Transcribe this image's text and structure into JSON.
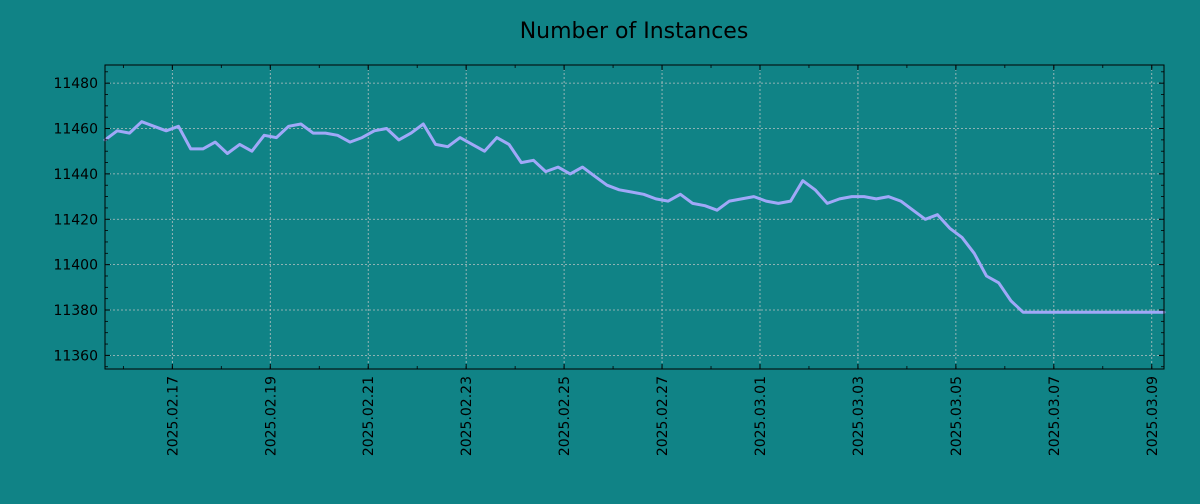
{
  "chart_data": {
    "type": "line",
    "title": "Number of Instances",
    "xlabel": "",
    "ylabel": "",
    "grid": true,
    "legend": "none",
    "colors": {
      "background": "#108386",
      "line": "#a0a8f8",
      "grid": "#b8c2c2",
      "axis": "#000000"
    },
    "xlim": [
      "2025-02-15T15:00",
      "2025-03-09T06:00"
    ],
    "ylim": [
      11354,
      11488
    ],
    "x_ticks": [
      "2025-02-17",
      "2025-02-19",
      "2025-02-21",
      "2025-02-23",
      "2025-02-25",
      "2025-02-27",
      "2025-03-01",
      "2025-03-03",
      "2025-03-05",
      "2025-03-07",
      "2025-03-09"
    ],
    "x_tick_labels": [
      "2025.02.17",
      "2025.02.19",
      "2025.02.21",
      "2025.02.23",
      "2025.02.25",
      "2025.02.27",
      "2025.03.01",
      "2025.03.03",
      "2025.03.05",
      "2025.03.07",
      "2025.03.09"
    ],
    "y_ticks": [
      11360,
      11380,
      11400,
      11420,
      11440,
      11460,
      11480
    ],
    "y_tick_labels": [
      "11360",
      "11380",
      "11400",
      "11420",
      "11440",
      "11460",
      "11480"
    ],
    "series": [
      {
        "x": [
          "2025-02-15T15:00",
          "2025-02-15T21:00",
          "2025-02-16T03:00",
          "2025-02-16T09:00",
          "2025-02-16T15:00",
          "2025-02-16T21:00",
          "2025-02-17T03:00",
          "2025-02-17T09:00",
          "2025-02-17T15:00",
          "2025-02-17T21:00",
          "2025-02-18T03:00",
          "2025-02-18T09:00",
          "2025-02-18T15:00",
          "2025-02-18T21:00",
          "2025-02-19T03:00",
          "2025-02-19T09:00",
          "2025-02-19T15:00",
          "2025-02-19T21:00",
          "2025-02-20T03:00",
          "2025-02-20T09:00",
          "2025-02-20T15:00",
          "2025-02-20T21:00",
          "2025-02-21T03:00",
          "2025-02-21T09:00",
          "2025-02-21T15:00",
          "2025-02-21T21:00",
          "2025-02-22T03:00",
          "2025-02-22T09:00",
          "2025-02-22T15:00",
          "2025-02-22T21:00",
          "2025-02-23T03:00",
          "2025-02-23T09:00",
          "2025-02-23T15:00",
          "2025-02-23T21:00",
          "2025-02-24T03:00",
          "2025-02-24T09:00",
          "2025-02-24T15:00",
          "2025-02-24T21:00",
          "2025-02-25T03:00",
          "2025-02-25T09:00",
          "2025-02-25T15:00",
          "2025-02-25T21:00",
          "2025-02-26T03:00",
          "2025-02-26T09:00",
          "2025-02-26T15:00",
          "2025-02-26T21:00",
          "2025-02-27T03:00",
          "2025-02-27T09:00",
          "2025-02-27T15:00",
          "2025-02-27T21:00",
          "2025-02-28T03:00",
          "2025-02-28T09:00",
          "2025-02-28T15:00",
          "2025-02-28T21:00",
          "2025-03-01T03:00",
          "2025-03-01T09:00",
          "2025-03-01T15:00",
          "2025-03-01T21:00",
          "2025-03-02T03:00",
          "2025-03-02T09:00",
          "2025-03-02T15:00",
          "2025-03-02T21:00",
          "2025-03-03T03:00",
          "2025-03-03T09:00",
          "2025-03-03T15:00",
          "2025-03-03T21:00",
          "2025-03-04T03:00",
          "2025-03-04T09:00",
          "2025-03-04T15:00",
          "2025-03-04T21:00",
          "2025-03-05T03:00",
          "2025-03-05T09:00",
          "2025-03-05T15:00",
          "2025-03-05T21:00",
          "2025-03-06T03:00",
          "2025-03-06T09:00",
          "2025-03-06T15:00",
          "2025-03-06T21:00",
          "2025-03-07T03:00",
          "2025-03-07T09:00",
          "2025-03-07T15:00",
          "2025-03-07T21:00",
          "2025-03-08T03:00",
          "2025-03-08T09:00",
          "2025-03-08T15:00",
          "2025-03-08T21:00",
          "2025-03-09T03:00",
          "2025-03-09T06:00"
        ],
        "y": [
          11455,
          11459,
          11458,
          11463,
          11461,
          11459,
          11461,
          11451,
          11451,
          11454,
          11449,
          11453,
          11450,
          11457,
          11456,
          11461,
          11462,
          11458,
          11458,
          11457,
          11454,
          11456,
          11459,
          11460,
          11455,
          11458,
          11462,
          11453,
          11452,
          11456,
          11453,
          11450,
          11456,
          11453,
          11445,
          11446,
          11441,
          11443,
          11440,
          11443,
          11439,
          11435,
          11433,
          11432,
          11431,
          11429,
          11428,
          11431,
          11427,
          11426,
          11424,
          11428,
          11429,
          11430,
          11428,
          11427,
          11428,
          11437,
          11433,
          11427,
          11429,
          11430,
          11430,
          11429,
          11430,
          11428,
          11424,
          11420,
          11422,
          11416,
          11412,
          11405,
          11395,
          11392,
          11384,
          11379,
          11379,
          11379,
          11379,
          11379,
          11379,
          11379,
          11379,
          11379,
          11379,
          11379,
          11379,
          11379
        ]
      }
    ]
  }
}
